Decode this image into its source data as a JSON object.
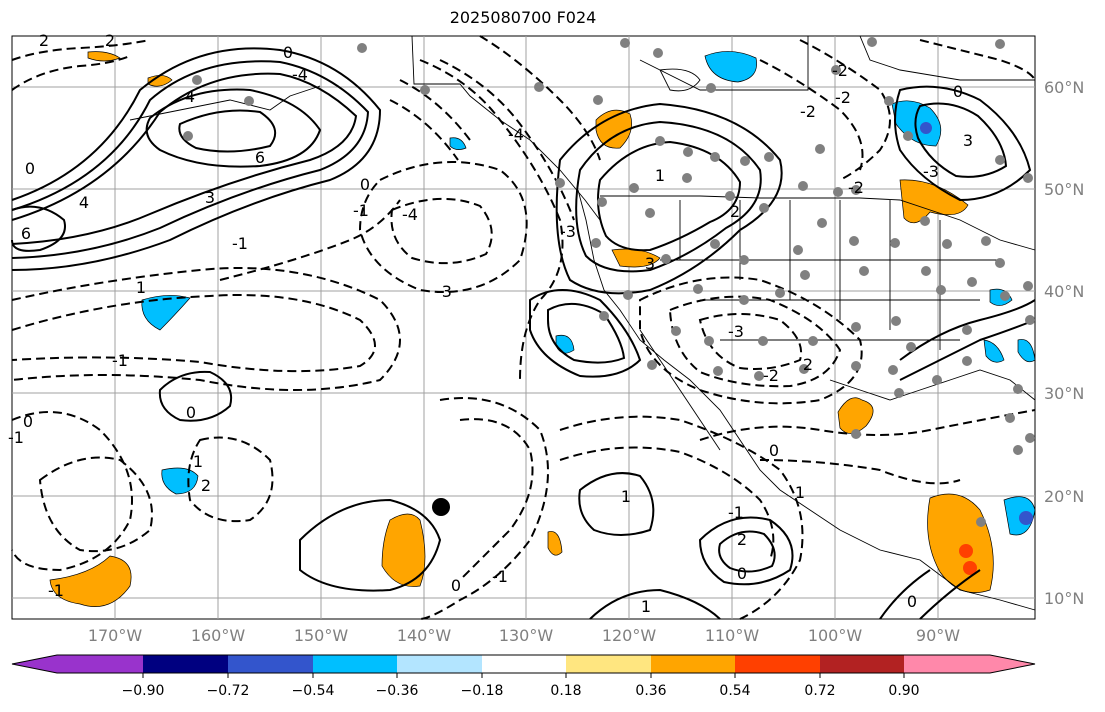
{
  "title": "2025080700 F024",
  "lat_labels": [
    "60°N",
    "50°N",
    "40°N",
    "30°N",
    "20°N",
    "10°N"
  ],
  "lon_labels": [
    "170°W",
    "160°W",
    "150°W",
    "140°W",
    "130°W",
    "120°W",
    "110°W",
    "100°W",
    "90°W"
  ],
  "contour_labels": [
    "0",
    "0",
    "0",
    "0",
    "0",
    "0",
    "0",
    "0",
    "0",
    "0",
    "-1",
    "-1",
    "-1",
    "-1",
    "-1",
    "-1",
    "1",
    "1",
    "1",
    "1",
    "1",
    "2",
    "2",
    "2",
    "2",
    "2",
    "2",
    "-2",
    "-2",
    "-2",
    "-2",
    "3",
    "3",
    "-3",
    "-3",
    "-3",
    "3",
    "4",
    "4",
    "-4",
    "-4",
    "-4",
    "6",
    "6",
    "1",
    "-1",
    "-2",
    "-3"
  ],
  "colorbar": {
    "tick_labels": [
      "−0.90",
      "−0.72",
      "−0.54",
      "−0.36",
      "−0.18",
      "0.18",
      "0.36",
      "0.54",
      "0.72",
      "0.90"
    ],
    "colors": [
      "#9933cc",
      "#000080",
      "#3355cc",
      "#00bfff",
      "#b3e5ff",
      "#ffffff",
      "#ffe680",
      "#ffa500",
      "#ff4000",
      "#b22222",
      "#ff88aa"
    ]
  },
  "colors": {
    "orange": "#ffa500",
    "light_blue": "#00bfff",
    "station_dot": "#808080"
  }
}
